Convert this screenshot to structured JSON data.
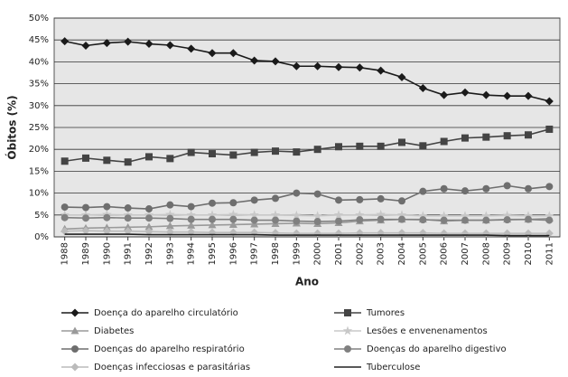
{
  "chart_data": {
    "type": "line",
    "y_label": "Óbitos (%)",
    "x_label": "Ano",
    "categories": [
      "1988",
      "1989",
      "1990",
      "1991",
      "1992",
      "1993",
      "1994",
      "1995",
      "1996",
      "1997",
      "1998",
      "1999",
      "2000",
      "2001",
      "2002",
      "2003",
      "2004",
      "2005",
      "2006",
      "2007",
      "2008",
      "2009",
      "2010",
      "2011"
    ],
    "ylim": [
      0,
      50
    ],
    "yticks": [
      {
        "value": 0,
        "label": "0%"
      },
      {
        "value": 5,
        "label": "5%"
      },
      {
        "value": 10,
        "label": "10%"
      },
      {
        "value": 15,
        "label": "15%"
      },
      {
        "value": 20,
        "label": "20%"
      },
      {
        "value": 25,
        "label": "25%"
      },
      {
        "value": 30,
        "label": "30%"
      },
      {
        "value": 35,
        "label": "35%"
      },
      {
        "value": 40,
        "label": "40%"
      },
      {
        "value": 45,
        "label": "45%"
      },
      {
        "value": 50,
        "label": "50%"
      }
    ],
    "grid": true,
    "series": [
      {
        "name": "Doença do aparelho circulatório",
        "color": "#1a1a1a",
        "marker": "diamond",
        "values": [
          44.7,
          43.7,
          44.3,
          44.6,
          44.1,
          43.8,
          43.0,
          42.0,
          42.0,
          40.3,
          40.1,
          39.0,
          39.0,
          38.8,
          38.7,
          38.0,
          36.5,
          34.0,
          32.4,
          33.0,
          32.4,
          32.2,
          32.2,
          31.0
        ]
      },
      {
        "name": "Tumores",
        "color": "#444444",
        "marker": "square",
        "values": [
          17.3,
          18.0,
          17.5,
          17.1,
          18.3,
          17.9,
          19.3,
          19.0,
          18.7,
          19.3,
          19.6,
          19.4,
          20.0,
          20.6,
          20.7,
          20.7,
          21.6,
          20.8,
          21.8,
          22.6,
          22.8,
          23.1,
          23.3,
          24.6
        ]
      },
      {
        "name": "Diabetes",
        "color": "#9a9a9a",
        "marker": "triangle",
        "values": [
          1.8,
          2.0,
          2.1,
          2.2,
          2.3,
          2.5,
          2.6,
          2.7,
          2.8,
          2.9,
          3.0,
          3.1,
          3.0,
          3.2,
          3.6,
          3.8,
          4.0,
          4.0,
          3.6,
          3.8,
          3.8,
          4.0,
          4.0,
          4.2
        ]
      },
      {
        "name": "Lesões e envenenamentos",
        "color": "#c8c8c8",
        "marker": "star",
        "values": [
          5.0,
          5.0,
          5.1,
          5.0,
          5.0,
          5.1,
          5.0,
          5.0,
          5.1,
          5.0,
          5.0,
          4.9,
          4.8,
          5.0,
          5.0,
          5.1,
          5.0,
          4.8,
          4.8,
          4.8,
          4.8,
          4.9,
          4.8,
          4.8
        ]
      },
      {
        "name": "Doenças do aparelho respiratório",
        "color": "#6e6e6e",
        "marker": "circle",
        "values": [
          6.8,
          6.7,
          6.9,
          6.6,
          6.4,
          7.3,
          6.9,
          7.7,
          7.8,
          8.4,
          8.8,
          10.0,
          9.8,
          8.4,
          8.5,
          8.7,
          8.2,
          10.4,
          11.0,
          10.5,
          11.0,
          11.7,
          11.0,
          11.5
        ]
      },
      {
        "name": "Doenças do aparelho digestivo",
        "color": "#808080",
        "marker": "circle",
        "values": [
          4.4,
          4.3,
          4.4,
          4.3,
          4.3,
          4.2,
          4.0,
          4.0,
          4.0,
          3.8,
          3.8,
          3.6,
          3.5,
          3.6,
          3.9,
          4.0,
          4.0,
          3.9,
          3.8,
          3.8,
          3.8,
          3.9,
          4.0,
          3.8
        ]
      },
      {
        "name": "Doenças infecciosas e parasitárias",
        "color": "#bbbbbb",
        "marker": "diamond",
        "values": [
          1.3,
          1.4,
          1.3,
          1.3,
          1.2,
          1.1,
          1.1,
          1.0,
          1.0,
          1.0,
          0.9,
          0.8,
          0.8,
          0.8,
          0.9,
          0.9,
          0.9,
          0.9,
          0.8,
          0.8,
          0.8,
          0.8,
          0.8,
          0.8
        ]
      },
      {
        "name": "Tuberculose",
        "color": "#222222",
        "marker": "none",
        "values": [
          0.6,
          0.6,
          0.6,
          0.6,
          0.5,
          0.5,
          0.5,
          0.5,
          0.5,
          0.5,
          0.4,
          0.4,
          0.4,
          0.4,
          0.4,
          0.4,
          0.4,
          0.4,
          0.4,
          0.4,
          0.4,
          0.3,
          0.3,
          0.3
        ]
      }
    ]
  }
}
